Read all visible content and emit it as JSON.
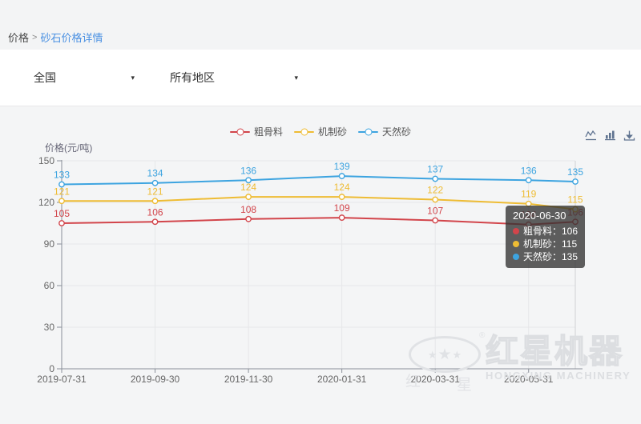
{
  "breadcrumb": {
    "section": "价格",
    "separator": ">",
    "current": "砂石价格详情"
  },
  "filters": {
    "region_select": {
      "value": "全国",
      "arrow": "▾"
    },
    "area_select": {
      "value": "所有地区",
      "arrow": "▾"
    }
  },
  "legend": {
    "items": [
      {
        "label": "粗骨料",
        "color": "#d2454b"
      },
      {
        "label": "机制砂",
        "color": "#eebc34"
      },
      {
        "label": "天然砂",
        "color": "#3da4e0"
      }
    ]
  },
  "toolbox": {
    "icons": [
      "line-chart-icon",
      "bar-chart-icon",
      "download-icon"
    ]
  },
  "chart_data": {
    "type": "line",
    "title": "",
    "ylabel": "价格(元/吨)",
    "xlabel": "",
    "ylim": [
      0,
      150
    ],
    "yticks": [
      0,
      30,
      60,
      90,
      120,
      150
    ],
    "grid": true,
    "legend_position": "top",
    "categories": [
      "2019-07-31",
      "2019-09-30",
      "2019-11-30",
      "2020-01-31",
      "2020-03-31",
      "2020-05-31",
      "2020-06-30"
    ],
    "x_axis_labels": [
      "2019-07-31",
      "2019-09-30",
      "2019-11-30",
      "2020-01-31",
      "2020-03-31",
      "2020-05-31"
    ],
    "series": [
      {
        "name": "粗骨料",
        "color": "#d2454b",
        "values": [
          105,
          106,
          108,
          109,
          107,
          104,
          106
        ]
      },
      {
        "name": "机制砂",
        "color": "#eebc34",
        "values": [
          121,
          121,
          124,
          124,
          122,
          119,
          115
        ]
      },
      {
        "name": "天然砂",
        "color": "#3da4e0",
        "values": [
          133,
          134,
          136,
          139,
          137,
          136,
          135
        ]
      }
    ]
  },
  "tooltip": {
    "date": "2020-06-30",
    "separator": "：",
    "items": [
      {
        "label": "粗骨料",
        "value": "106",
        "color": "#d2454b"
      },
      {
        "label": "机制砂",
        "value": "115",
        "color": "#eebc34"
      },
      {
        "label": "天然砂",
        "value": "135",
        "color": "#3da4e0"
      }
    ]
  },
  "watermark": {
    "registered": "®",
    "cn_left": "红",
    "cn_right": "星",
    "brand_cn": "红星机器",
    "brand_en": "HONGXING MACHINERY"
  }
}
